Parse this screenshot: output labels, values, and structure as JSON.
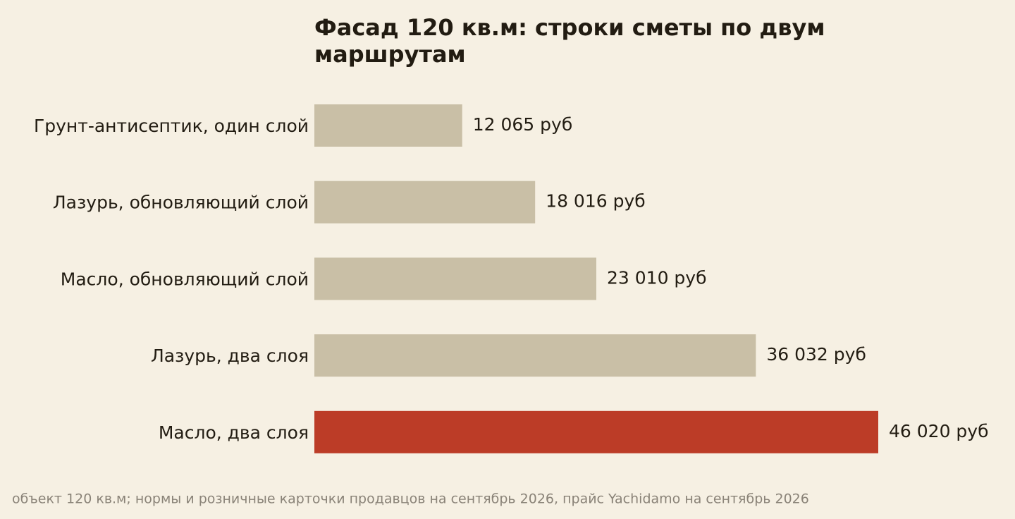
{
  "chart_data": {
    "type": "bar",
    "orientation": "horizontal",
    "title": "Фасад 120 кв.м: строки сметы по двум маршрутам",
    "categories": [
      "Грунт-антисептик, один слой",
      "Лазурь, обновляющий слой",
      "Масло, обновляющий слой",
      "Лазурь, два слоя",
      "Масло, два слоя"
    ],
    "values": [
      12065,
      18016,
      23010,
      36032,
      46020
    ],
    "value_labels": [
      "12 065 руб",
      "18 016 руб",
      "23 010 руб",
      "36 032 руб",
      "46 020 руб"
    ],
    "colors": [
      "#c9bfa6",
      "#c9bfa6",
      "#c9bfa6",
      "#c9bfa6",
      "#bc3c27"
    ],
    "note": "объект 120 кв.м; нормы и розничные карточки продавцов на сентябрь 2026, прайс Yachidamo на сентябрь 2026"
  }
}
